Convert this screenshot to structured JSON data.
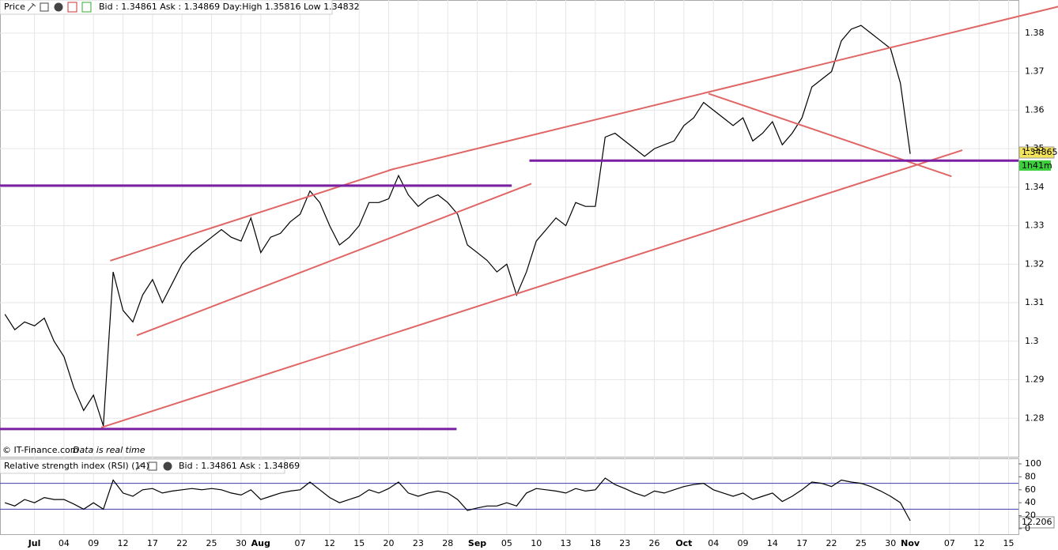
{
  "chart_data": [
    {
      "type": "line",
      "header": "Price",
      "quote": "Bid : 1.34861 Ask : 1.34869 Day:High 1.35816 Low 1.34832",
      "credit": "© IT-Finance.com",
      "credit_note": "Data is real time",
      "last_price": "1.34865",
      "countdown": "1h41m",
      "x": [
        -3,
        -2,
        -1,
        0,
        1,
        2,
        3,
        4,
        5,
        6,
        7,
        8,
        9,
        10,
        11,
        12,
        13,
        14,
        15,
        16,
        17,
        18,
        19,
        20,
        21,
        22,
        23,
        24,
        25,
        26,
        27,
        28,
        29,
        30,
        31,
        32,
        33,
        34,
        35,
        36,
        37,
        38,
        39,
        40,
        41,
        42,
        43,
        44,
        45,
        46,
        47,
        48,
        49,
        50,
        51,
        52,
        53,
        54,
        55,
        56,
        57,
        58,
        59,
        60,
        61,
        62,
        63,
        64,
        65,
        66,
        67,
        68,
        69,
        70,
        71,
        72,
        73,
        74,
        75,
        76,
        77,
        78,
        79,
        80,
        81,
        82,
        83,
        84,
        85,
        86,
        87,
        88,
        89
      ],
      "series": [
        {
          "color": "#000000",
          "values": [
            1.307,
            1.303,
            1.305,
            1.304,
            1.306,
            1.3,
            1.296,
            1.288,
            1.282,
            1.286,
            1.278,
            1.318,
            1.308,
            1.305,
            1.312,
            1.316,
            1.31,
            1.315,
            1.32,
            1.323,
            1.325,
            1.327,
            1.329,
            1.327,
            1.326,
            1.332,
            1.323,
            1.327,
            1.328,
            1.331,
            1.333,
            1.339,
            1.336,
            1.33,
            1.325,
            1.327,
            1.33,
            1.336,
            1.336,
            1.337,
            1.343,
            1.338,
            1.335,
            1.337,
            1.338,
            1.336,
            1.333,
            1.325,
            1.323,
            1.321,
            1.318,
            1.32,
            1.312,
            1.318,
            1.326,
            1.329,
            1.332,
            1.33,
            1.336,
            1.335,
            1.335,
            1.353,
            1.354,
            1.352,
            1.35,
            1.348,
            1.35,
            1.351,
            1.352,
            1.356,
            1.358,
            1.362,
            1.36,
            1.358,
            1.356,
            1.358,
            1.352,
            1.354,
            1.357,
            1.351,
            1.354,
            1.358,
            1.366,
            1.368,
            1.37,
            1.378,
            1.381,
            1.382,
            1.38,
            1.378,
            1.376,
            1.367,
            1.34865
          ]
        }
      ],
      "lines": [
        {
          "color": "#e06666",
          "x": [
            7.7,
            36.6
          ],
          "y": [
            1.3209,
            1.3448
          ]
        },
        {
          "color": "#e06666",
          "x": [
            36,
            105.5
          ],
          "y": [
            1.3444,
            1.3878
          ]
        },
        {
          "color": "#e06666",
          "x": [
            10.4,
            50.5
          ],
          "y": [
            1.3015,
            1.3409
          ]
        },
        {
          "color": "#e06666",
          "x": [
            6.8,
            94.3
          ],
          "y": [
            1.2776,
            1.3496
          ]
        },
        {
          "color": "#e06666",
          "x": [
            68.5,
            93.2
          ],
          "y": [
            1.3643,
            1.3428
          ]
        },
        {
          "color": "#7b1fa2",
          "x": [
            -3.5,
            48.5
          ],
          "y": [
            1.3404,
            1.3404
          ]
        },
        {
          "color": "#7b1fa2",
          "x": [
            -3.5,
            42.9
          ],
          "y": [
            1.2772,
            1.2772
          ]
        },
        {
          "color": "#7b1fa2",
          "x": [
            50.3,
            100
          ],
          "y": [
            1.3469,
            1.3469
          ]
        }
      ],
      "xlim": [
        -3.5,
        100
      ],
      "ylim": [
        1.27,
        1.3886
      ],
      "yticks": [
        1.28,
        1.29,
        1.3,
        1.31,
        1.32,
        1.33,
        1.34,
        1.35,
        1.36,
        1.37,
        1.38
      ],
      "xticks": [
        {
          "value": 0,
          "label": "Jul"
        },
        {
          "value": 3,
          "label": "04"
        },
        {
          "value": 6,
          "label": "09"
        },
        {
          "value": 9,
          "label": "12"
        },
        {
          "value": 12,
          "label": "17"
        },
        {
          "value": 15,
          "label": "22"
        },
        {
          "value": 18,
          "label": "25"
        },
        {
          "value": 21,
          "label": "30"
        },
        {
          "value": 23,
          "label": "Aug"
        },
        {
          "value": 27,
          "label": "07"
        },
        {
          "value": 30,
          "label": "12"
        },
        {
          "value": 33,
          "label": "15"
        },
        {
          "value": 36,
          "label": "20"
        },
        {
          "value": 39,
          "label": "23"
        },
        {
          "value": 42,
          "label": "28"
        },
        {
          "value": 45,
          "label": "Sep"
        },
        {
          "value": 48,
          "label": "05"
        },
        {
          "value": 51,
          "label": "10"
        },
        {
          "value": 54,
          "label": "13"
        },
        {
          "value": 57,
          "label": "18"
        },
        {
          "value": 60,
          "label": "23"
        },
        {
          "value": 63,
          "label": "26"
        },
        {
          "value": 66,
          "label": "Oct"
        },
        {
          "value": 69,
          "label": "04"
        },
        {
          "value": 72,
          "label": "09"
        },
        {
          "value": 75,
          "label": "14"
        },
        {
          "value": 78,
          "label": "17"
        },
        {
          "value": 81,
          "label": "22"
        },
        {
          "value": 84,
          "label": "25"
        },
        {
          "value": 87,
          "label": "30"
        },
        {
          "value": 89,
          "label": "Nov"
        },
        {
          "value": 93,
          "label": "07"
        },
        {
          "value": 96,
          "label": "12"
        },
        {
          "value": 99,
          "label": "15"
        }
      ],
      "grid": true
    },
    {
      "type": "line",
      "header": "Relative strength index (RSI) (14)",
      "quote": "Bid : 1.34861 Ask : 1.34869",
      "last_value": 12.206,
      "x": [
        -3,
        -2,
        -1,
        0,
        1,
        2,
        3,
        4,
        5,
        6,
        7,
        8,
        9,
        10,
        11,
        12,
        13,
        14,
        15,
        16,
        17,
        18,
        19,
        20,
        21,
        22,
        23,
        24,
        25,
        26,
        27,
        28,
        29,
        30,
        31,
        32,
        33,
        34,
        35,
        36,
        37,
        38,
        39,
        40,
        41,
        42,
        43,
        44,
        45,
        46,
        47,
        48,
        49,
        50,
        51,
        52,
        53,
        54,
        55,
        56,
        57,
        58,
        59,
        60,
        61,
        62,
        63,
        64,
        65,
        66,
        67,
        68,
        69,
        70,
        71,
        72,
        73,
        74,
        75,
        76,
        77,
        78,
        79,
        80,
        81,
        82,
        83,
        84,
        85,
        86,
        87,
        88,
        89
      ],
      "series": [
        {
          "color": "#000000",
          "values": [
            40,
            35,
            45,
            40,
            48,
            45,
            45,
            38,
            30,
            40,
            30,
            75,
            55,
            50,
            60,
            62,
            55,
            58,
            60,
            62,
            60,
            62,
            60,
            55,
            52,
            60,
            45,
            50,
            55,
            58,
            60,
            72,
            60,
            48,
            40,
            45,
            50,
            60,
            55,
            62,
            72,
            55,
            50,
            55,
            58,
            55,
            45,
            28,
            32,
            35,
            35,
            40,
            35,
            55,
            62,
            60,
            58,
            55,
            62,
            58,
            60,
            78,
            68,
            62,
            55,
            50,
            58,
            55,
            60,
            65,
            68,
            70,
            60,
            55,
            50,
            55,
            45,
            50,
            55,
            42,
            50,
            60,
            72,
            70,
            65,
            75,
            72,
            70,
            65,
            58,
            50,
            40,
            12.206
          ]
        }
      ],
      "levels": [
        {
          "value": 70,
          "color": "#3f3fb0"
        },
        {
          "value": 30,
          "color": "#3f3fb0"
        }
      ],
      "xlim": [
        -3.5,
        100
      ],
      "ylim": [
        0,
        100
      ],
      "yticks": [
        0,
        20,
        40,
        60,
        80,
        100
      ]
    }
  ]
}
